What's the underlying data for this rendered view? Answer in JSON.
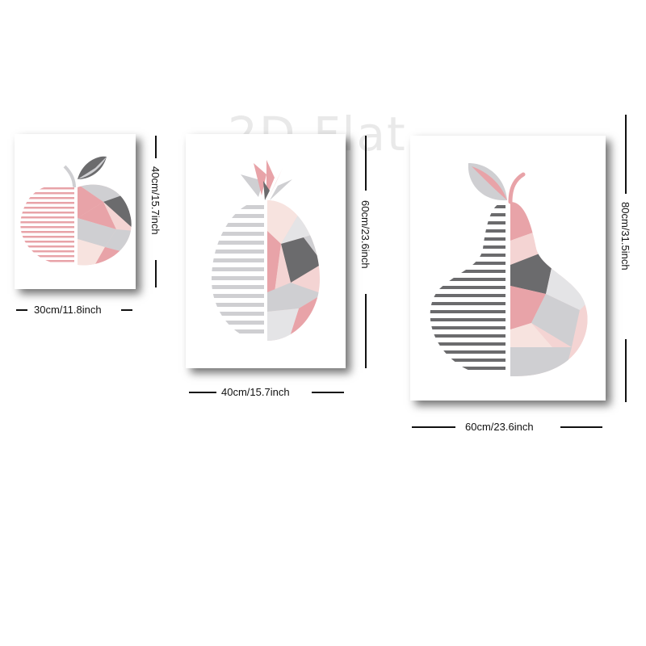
{
  "watermark": "2D Flat",
  "colors": {
    "pink": "#e8a3a8",
    "light_pink": "#f4d4d3",
    "blush": "#f7e3df",
    "gray": "#cfcfd2",
    "dark_gray": "#6b6b6d",
    "light_gray": "#e4e4e6"
  },
  "posters": [
    {
      "subject": "apple",
      "width_label": "30cm/11.8inch",
      "height_label": "40cm/15.7inch"
    },
    {
      "subject": "pineapple",
      "width_label": "40cm/15.7inch",
      "height_label": "60cm/23.6inch"
    },
    {
      "subject": "pear",
      "width_label": "60cm/23.6inch",
      "height_label": "80cm/31.5inch"
    }
  ]
}
